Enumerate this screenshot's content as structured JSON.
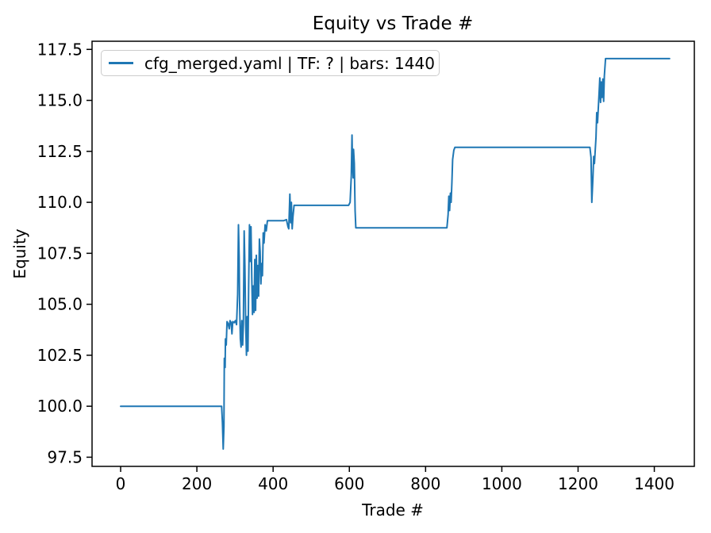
{
  "chart_data": {
    "type": "line",
    "title": "Equity vs Trade #",
    "xlabel": "Trade #",
    "ylabel": "Equity",
    "grid": false,
    "legend_position": "upper left",
    "line_color": "#1f77b4",
    "xlim": [
      -75,
      1505
    ],
    "ylim": [
      97.05,
      117.9
    ],
    "xticks": [
      0,
      200,
      400,
      600,
      800,
      1000,
      1200,
      1400
    ],
    "xtick_labels": [
      "0",
      "200",
      "400",
      "600",
      "800",
      "1000",
      "1200",
      "1400"
    ],
    "yticks": [
      97.5,
      100.0,
      102.5,
      105.0,
      107.5,
      110.0,
      112.5,
      115.0,
      117.5
    ],
    "ytick_labels": [
      "97.5",
      "100.0",
      "102.5",
      "105.0",
      "107.5",
      "110.0",
      "112.5",
      "115.0",
      "117.5"
    ],
    "series": [
      {
        "name": "cfg_merged.yaml | TF: ? | bars: 1440",
        "color": "#1f77b4",
        "points": [
          [
            0,
            100.0
          ],
          [
            265,
            100.0
          ],
          [
            267,
            99.2
          ],
          [
            269,
            97.9
          ],
          [
            271,
            99.0
          ],
          [
            272,
            102.35
          ],
          [
            274,
            101.9
          ],
          [
            275,
            103.3
          ],
          [
            277,
            103.0
          ],
          [
            279,
            104.15
          ],
          [
            282,
            104.05
          ],
          [
            285,
            103.8
          ],
          [
            287,
            104.2
          ],
          [
            290,
            104.1
          ],
          [
            292,
            103.55
          ],
          [
            294,
            104.15
          ],
          [
            298,
            104.1
          ],
          [
            301,
            104.2
          ],
          [
            304,
            104.0
          ],
          [
            307,
            105.5
          ],
          [
            309,
            108.9
          ],
          [
            311,
            107.3
          ],
          [
            312,
            105.2
          ],
          [
            314,
            103.3
          ],
          [
            316,
            102.9
          ],
          [
            318,
            104.2
          ],
          [
            320,
            103.0
          ],
          [
            322,
            104.0
          ],
          [
            324,
            108.6
          ],
          [
            326,
            106.9
          ],
          [
            328,
            104.1
          ],
          [
            330,
            102.5
          ],
          [
            332,
            104.4
          ],
          [
            334,
            102.7
          ],
          [
            336,
            106.0
          ],
          [
            338,
            108.9
          ],
          [
            340,
            107.1
          ],
          [
            342,
            108.8
          ],
          [
            344,
            106.3
          ],
          [
            346,
            104.5
          ],
          [
            348,
            105.9
          ],
          [
            350,
            104.6
          ],
          [
            352,
            107.2
          ],
          [
            354,
            104.7
          ],
          [
            356,
            107.4
          ],
          [
            358,
            105.3
          ],
          [
            360,
            106.9
          ],
          [
            362,
            105.4
          ],
          [
            364,
            108.2
          ],
          [
            366,
            107.6
          ],
          [
            368,
            106.0
          ],
          [
            370,
            107.0
          ],
          [
            372,
            106.4
          ],
          [
            374,
            108.5
          ],
          [
            376,
            108.0
          ],
          [
            379,
            108.9
          ],
          [
            382,
            108.6
          ],
          [
            385,
            109.1
          ],
          [
            400,
            109.1
          ],
          [
            415,
            109.1
          ],
          [
            428,
            109.1
          ],
          [
            435,
            109.15
          ],
          [
            439,
            108.8
          ],
          [
            441,
            108.7
          ],
          [
            444,
            110.4
          ],
          [
            446,
            109.0
          ],
          [
            448,
            110.0
          ],
          [
            450,
            108.7
          ],
          [
            452,
            109.3
          ],
          [
            455,
            109.85
          ],
          [
            520,
            109.85
          ],
          [
            598,
            109.85
          ],
          [
            602,
            110.0
          ],
          [
            605,
            111.3
          ],
          [
            607,
            113.3
          ],
          [
            608,
            112.1
          ],
          [
            610,
            111.2
          ],
          [
            611,
            112.6
          ],
          [
            613,
            111.9
          ],
          [
            615,
            109.6
          ],
          [
            617,
            108.75
          ],
          [
            720,
            108.75
          ],
          [
            856,
            108.75
          ],
          [
            859,
            109.4
          ],
          [
            861,
            110.3
          ],
          [
            863,
            109.6
          ],
          [
            865,
            110.45
          ],
          [
            867,
            110.0
          ],
          [
            869,
            111.0
          ],
          [
            871,
            112.1
          ],
          [
            874,
            112.55
          ],
          [
            877,
            112.7
          ],
          [
            1000,
            112.7
          ],
          [
            1231,
            112.7
          ],
          [
            1234,
            112.2
          ],
          [
            1236,
            110.0
          ],
          [
            1239,
            111.2
          ],
          [
            1241,
            112.25
          ],
          [
            1243,
            111.9
          ],
          [
            1245,
            112.55
          ],
          [
            1247,
            113.2
          ],
          [
            1249,
            114.4
          ],
          [
            1251,
            113.9
          ],
          [
            1253,
            114.55
          ],
          [
            1255,
            115.3
          ],
          [
            1257,
            116.1
          ],
          [
            1259,
            114.9
          ],
          [
            1261,
            115.9
          ],
          [
            1263,
            115.15
          ],
          [
            1265,
            116.05
          ],
          [
            1267,
            114.95
          ],
          [
            1269,
            116.2
          ],
          [
            1272,
            117.05
          ],
          [
            1350,
            117.05
          ],
          [
            1440,
            117.05
          ]
        ]
      }
    ]
  }
}
